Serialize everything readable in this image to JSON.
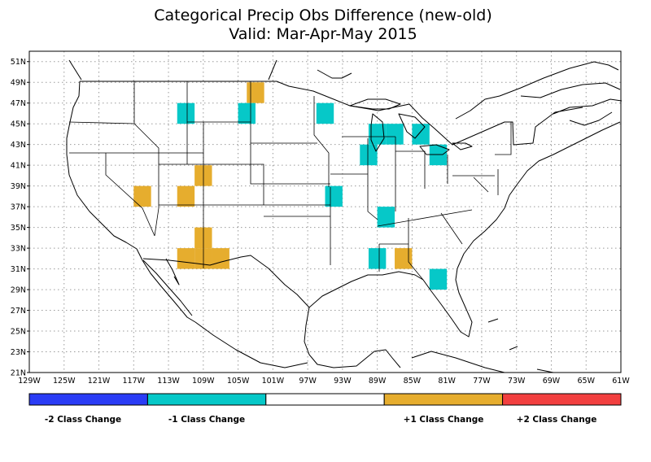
{
  "title": {
    "line1": "Categorical Precip Obs Difference (new-old)",
    "line2": "Valid: Mar-Apr-May 2015"
  },
  "axes": {
    "lon_labels": [
      "129W",
      "125W",
      "121W",
      "117W",
      "113W",
      "109W",
      "105W",
      "101W",
      "97W",
      "93W",
      "89W",
      "85W",
      "81W",
      "77W",
      "73W",
      "69W",
      "65W",
      "61W"
    ],
    "lat_labels": [
      "51N",
      "49N",
      "47N",
      "45N",
      "43N",
      "41N",
      "39N",
      "37N",
      "35N",
      "33N",
      "31N",
      "29N",
      "27N",
      "25N",
      "23N",
      "21N"
    ]
  },
  "legend": {
    "bins": [
      {
        "color": "#2a3cf5",
        "label": "-2 Class Change"
      },
      {
        "color": "#06c8c8",
        "label": "-1 Class Change"
      },
      {
        "color": "#ffffff",
        "label": ""
      },
      {
        "color": "#e6ad2e",
        "label": "+1 Class Change"
      },
      {
        "color": "#f23f3f",
        "label": "+2 Class Change"
      }
    ]
  },
  "colors": {
    "minus1": "#06c8c8",
    "plus1": "#e6ad2e"
  },
  "cells": [
    {
      "lon": -103,
      "lat": 48,
      "cls": 1
    },
    {
      "lon": -111,
      "lat": 46,
      "cls": -1
    },
    {
      "lon": -104,
      "lat": 46,
      "cls": -1
    },
    {
      "lon": -95,
      "lat": 46,
      "cls": -1
    },
    {
      "lon": -89,
      "lat": 44,
      "cls": -1
    },
    {
      "lon": -87,
      "lat": 44,
      "cls": -1
    },
    {
      "lon": -84,
      "lat": 44,
      "cls": -1
    },
    {
      "lon": -90,
      "lat": 42,
      "cls": -1
    },
    {
      "lon": -82,
      "lat": 42,
      "cls": -1
    },
    {
      "lon": -109,
      "lat": 40,
      "cls": 1
    },
    {
      "lon": -116,
      "lat": 38,
      "cls": 1
    },
    {
      "lon": -111,
      "lat": 38,
      "cls": 1
    },
    {
      "lon": -94,
      "lat": 38,
      "cls": -1
    },
    {
      "lon": -88,
      "lat": 36,
      "cls": -1
    },
    {
      "lon": -109,
      "lat": 34,
      "cls": 1
    },
    {
      "lon": -111,
      "lat": 32,
      "cls": 1
    },
    {
      "lon": -109,
      "lat": 32,
      "cls": 1
    },
    {
      "lon": -107,
      "lat": 32,
      "cls": 1
    },
    {
      "lon": -89,
      "lat": 32,
      "cls": -1
    },
    {
      "lon": -86,
      "lat": 32,
      "cls": 1
    },
    {
      "lon": -82,
      "lat": 30,
      "cls": -1
    }
  ]
}
